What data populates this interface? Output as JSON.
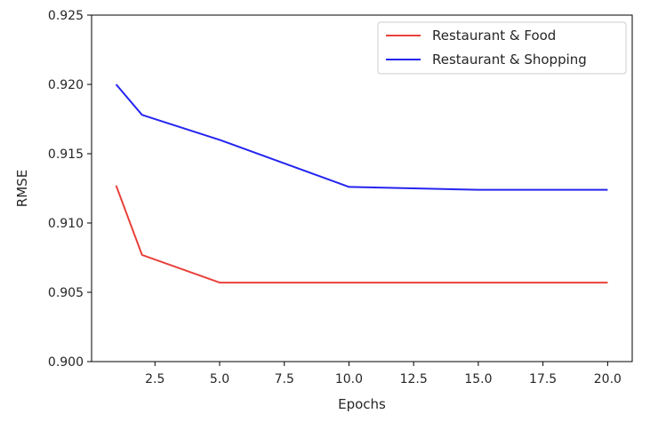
{
  "chart_data": {
    "type": "line",
    "title": "",
    "xlabel": "Epochs",
    "ylabel": "RMSE",
    "xlim": [
      0.05,
      20.95
    ],
    "ylim": [
      0.9,
      0.925
    ],
    "xticks": [
      2.5,
      5.0,
      7.5,
      10.0,
      12.5,
      15.0,
      17.5,
      20.0
    ],
    "xtick_labels": [
      "2.5",
      "5.0",
      "7.5",
      "10.0",
      "12.5",
      "15.0",
      "17.5",
      "20.0"
    ],
    "yticks": [
      0.9,
      0.905,
      0.91,
      0.915,
      0.92,
      0.925
    ],
    "ytick_labels": [
      "0.900",
      "0.905",
      "0.910",
      "0.915",
      "0.920",
      "0.925"
    ],
    "grid": false,
    "legend_position": "top-right",
    "series": [
      {
        "name": "Restaurant & Food",
        "color": "#e8413b",
        "x": [
          1,
          2,
          5,
          10,
          15,
          20
        ],
        "y": [
          0.9127,
          0.9077,
          0.9057,
          0.9057,
          0.9057,
          0.9057
        ]
      },
      {
        "name": "Restaurant & Shopping",
        "color": "#2424f0",
        "x": [
          1,
          2,
          5,
          10,
          15,
          20
        ],
        "y": [
          0.92,
          0.9178,
          0.916,
          0.9126,
          0.9124,
          0.9124
        ]
      }
    ]
  }
}
